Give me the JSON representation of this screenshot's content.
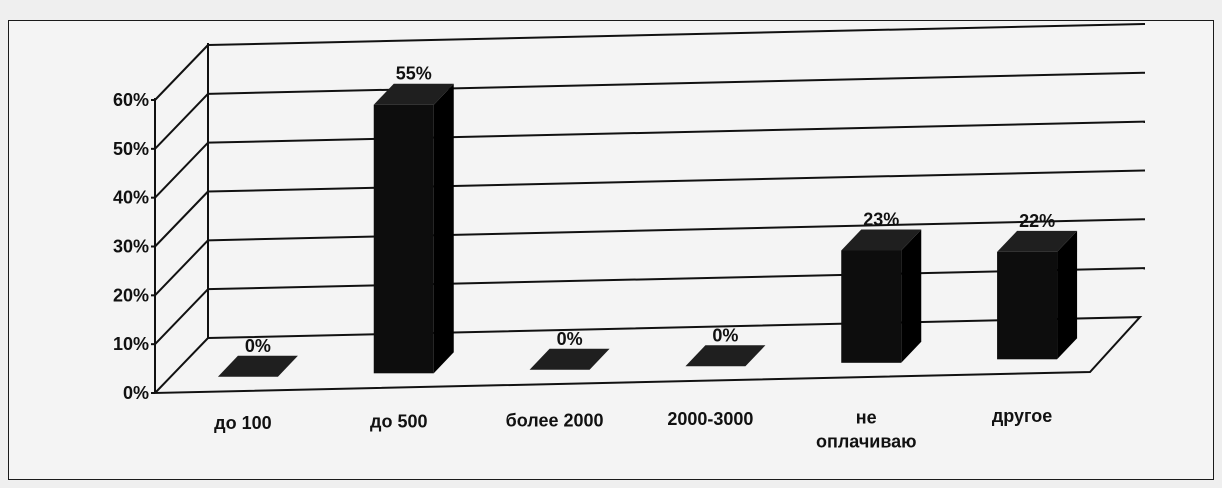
{
  "chart_data": {
    "type": "bar",
    "categories": [
      "до 100",
      "до 500",
      "более 2000",
      "2000-3000",
      "не оплачиваю",
      "другое"
    ],
    "category_lines": [
      [
        "до 100"
      ],
      [
        "до 500"
      ],
      [
        "более 2000"
      ],
      [
        "2000-3000"
      ],
      [
        "не",
        "оплачиваю"
      ],
      [
        "другое"
      ]
    ],
    "values": [
      0,
      55,
      0,
      0,
      23,
      22
    ],
    "data_labels": [
      "0%",
      "55%",
      "0%",
      "0%",
      "23%",
      "22%"
    ],
    "y_ticks": [
      "0%",
      "10%",
      "20%",
      "30%",
      "40%",
      "50%",
      "60%"
    ],
    "ylim": [
      0,
      60
    ],
    "grid": true,
    "three_d": true,
    "bar_color": "#0d0d0d",
    "title": "",
    "xlabel": "",
    "ylabel": ""
  }
}
